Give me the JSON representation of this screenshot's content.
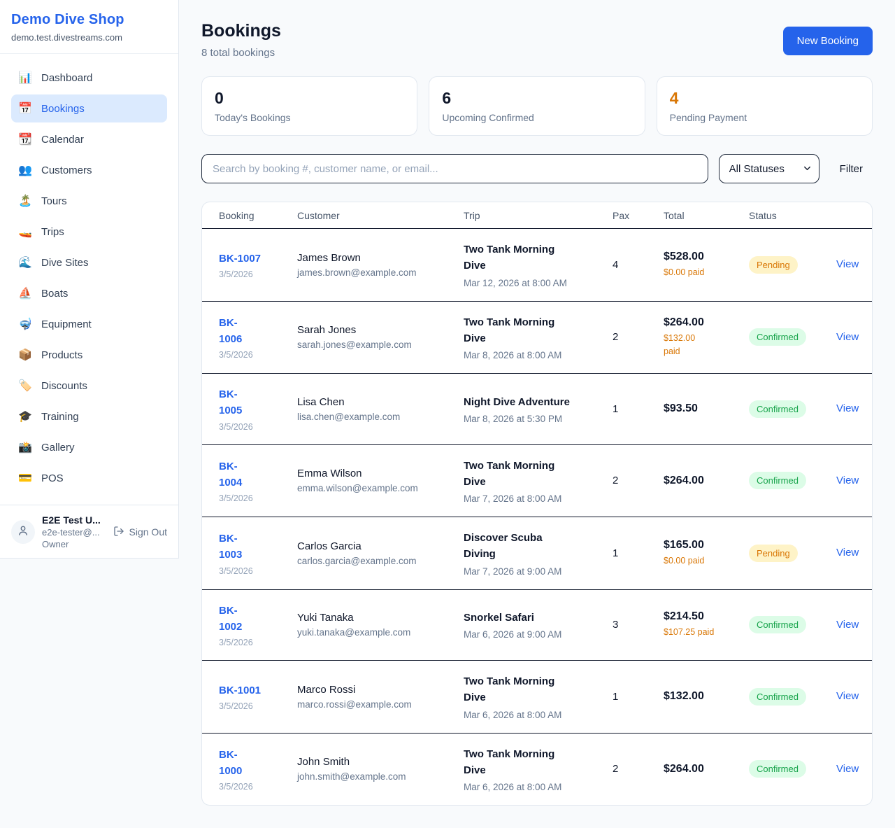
{
  "sidebar": {
    "brand": {
      "name": "Demo Dive Shop",
      "domain": "demo.test.divestreams.com"
    },
    "items": [
      {
        "icon": "📊",
        "icon_name": "bar-chart-icon",
        "label": "Dashboard",
        "active": false
      },
      {
        "icon": "📅",
        "icon_name": "calendar-icon",
        "label": "Bookings",
        "active": true
      },
      {
        "icon": "📆",
        "icon_name": "tear-off-calendar-icon",
        "label": "Calendar",
        "active": false
      },
      {
        "icon": "👥",
        "icon_name": "people-icon",
        "label": "Customers",
        "active": false
      },
      {
        "icon": "🏝️",
        "icon_name": "island-icon",
        "label": "Tours",
        "active": false
      },
      {
        "icon": "🚤",
        "icon_name": "speedboat-icon",
        "label": "Trips",
        "active": false
      },
      {
        "icon": "🌊",
        "icon_name": "wave-icon",
        "label": "Dive Sites",
        "active": false
      },
      {
        "icon": "⛵",
        "icon_name": "sailboat-icon",
        "label": "Boats",
        "active": false
      },
      {
        "icon": "🤿",
        "icon_name": "diving-mask-icon",
        "label": "Equipment",
        "active": false
      },
      {
        "icon": "📦",
        "icon_name": "package-icon",
        "label": "Products",
        "active": false
      },
      {
        "icon": "🏷️",
        "icon_name": "tag-icon",
        "label": "Discounts",
        "active": false
      },
      {
        "icon": "🎓",
        "icon_name": "graduation-cap-icon",
        "label": "Training",
        "active": false
      },
      {
        "icon": "📸",
        "icon_name": "camera-icon",
        "label": "Gallery",
        "active": false
      },
      {
        "icon": "💳",
        "icon_name": "credit-card-icon",
        "label": "POS",
        "active": false
      }
    ],
    "user": {
      "name": "E2E Test U...",
      "email": "e2e-tester@...",
      "role": "Owner",
      "sign_out_label": "Sign Out"
    }
  },
  "header": {
    "title": "Bookings",
    "subtitle": "8 total bookings",
    "new_booking_label": "New Booking"
  },
  "stats": [
    {
      "value": "0",
      "label": "Today's Bookings",
      "accent": false
    },
    {
      "value": "6",
      "label": "Upcoming Confirmed",
      "accent": false
    },
    {
      "value": "4",
      "label": "Pending Payment",
      "accent": true
    }
  ],
  "controls": {
    "search_placeholder": "Search by booking #, customer name, or email...",
    "status_filter_value": "All Statuses",
    "filter_label": "Filter"
  },
  "table": {
    "headers": [
      "Booking",
      "Customer",
      "Trip",
      "Pax",
      "Total",
      "Status"
    ],
    "view_label": "View",
    "rows": [
      {
        "id": "BK-1007",
        "id_two_lines": false,
        "date": "3/5/2026",
        "customer": "James Brown",
        "email": "james.brown@example.com",
        "trip": "Two Tank Morning Dive",
        "trip_two_lines": true,
        "trip_datetime": "Mar 12, 2026 at 8:00 AM",
        "pax": "4",
        "total": "$528.00",
        "paid": "$0.00 paid",
        "paid_two_lines": false,
        "status": "Pending"
      },
      {
        "id": "BK-1006",
        "id_two_lines": true,
        "date": "3/5/2026",
        "customer": "Sarah Jones",
        "email": "sarah.jones@example.com",
        "trip": "Two Tank Morning Dive",
        "trip_two_lines": true,
        "trip_datetime": "Mar 8, 2026 at 8:00 AM",
        "pax": "2",
        "total": "$264.00",
        "paid": "$132.00 paid",
        "paid_two_lines": true,
        "status": "Confirmed"
      },
      {
        "id": "BK-1005",
        "id_two_lines": true,
        "date": "3/5/2026",
        "customer": "Lisa Chen",
        "email": "lisa.chen@example.com",
        "trip": "Night Dive Adventure",
        "trip_two_lines": false,
        "trip_datetime": "Mar 8, 2026 at 5:30 PM",
        "pax": "1",
        "total": "$93.50",
        "paid": null,
        "paid_two_lines": false,
        "status": "Confirmed"
      },
      {
        "id": "BK-1004",
        "id_two_lines": true,
        "date": "3/5/2026",
        "customer": "Emma Wilson",
        "email": "emma.wilson@example.com",
        "trip": "Two Tank Morning Dive",
        "trip_two_lines": true,
        "trip_datetime": "Mar 7, 2026 at 8:00 AM",
        "pax": "2",
        "total": "$264.00",
        "paid": null,
        "paid_two_lines": false,
        "status": "Confirmed"
      },
      {
        "id": "BK-1003",
        "id_two_lines": true,
        "date": "3/5/2026",
        "customer": "Carlos Garcia",
        "email": "carlos.garcia@example.com",
        "trip": "Discover Scuba Diving",
        "trip_two_lines": true,
        "trip_datetime": "Mar 7, 2026 at 9:00 AM",
        "pax": "1",
        "total": "$165.00",
        "paid": "$0.00 paid",
        "paid_two_lines": false,
        "status": "Pending"
      },
      {
        "id": "BK-1002",
        "id_two_lines": true,
        "date": "3/5/2026",
        "customer": "Yuki Tanaka",
        "email": "yuki.tanaka@example.com",
        "trip": "Snorkel Safari",
        "trip_two_lines": false,
        "trip_datetime": "Mar 6, 2026 at 9:00 AM",
        "pax": "3",
        "total": "$214.50",
        "paid": "$107.25 paid",
        "paid_two_lines": false,
        "status": "Confirmed"
      },
      {
        "id": "BK-1001",
        "id_two_lines": false,
        "date": "3/5/2026",
        "customer": "Marco Rossi",
        "email": "marco.rossi@example.com",
        "trip": "Two Tank Morning Dive",
        "trip_two_lines": true,
        "trip_datetime": "Mar 6, 2026 at 8:00 AM",
        "pax": "1",
        "total": "$132.00",
        "paid": null,
        "paid_two_lines": false,
        "status": "Confirmed"
      },
      {
        "id": "BK-1000",
        "id_two_lines": true,
        "date": "3/5/2026",
        "customer": "John Smith",
        "email": "john.smith@example.com",
        "trip": "Two Tank Morning Dive",
        "trip_two_lines": true,
        "trip_datetime": "Mar 6, 2026 at 8:00 AM",
        "pax": "2",
        "total": "$264.00",
        "paid": null,
        "paid_two_lines": false,
        "status": "Confirmed"
      }
    ]
  },
  "colors": {
    "accent_blue": "#2563eb",
    "pending_text": "#d97706",
    "pending_bg": "#fef3c7",
    "confirmed_text": "#16a34a",
    "confirmed_bg": "#dcfce7",
    "dark_divider": "#0f172a",
    "light_border": "#e2e8f0",
    "page_bg": "#f8fafc"
  }
}
